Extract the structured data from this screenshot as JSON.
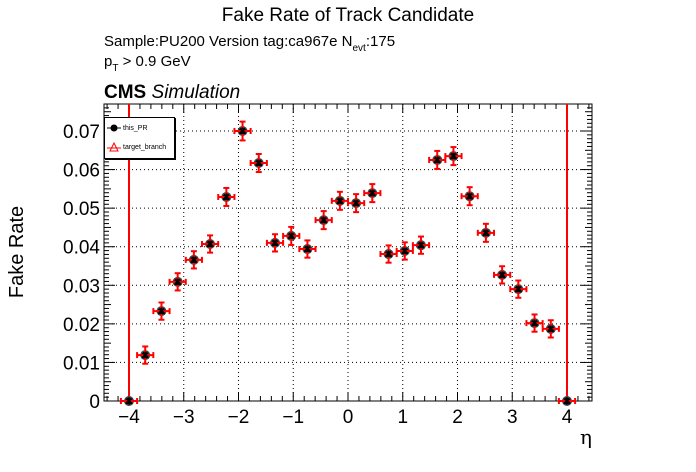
{
  "header": {
    "title": "Fake Rate of Track Candidate",
    "sample_line": "Sample:PU200   Version tag:ca967e  N",
    "nevt_sub": "evt",
    "nevt_value": ":175",
    "pt_prefix": "p",
    "pt_sub": "T",
    "pt_cut": " > 0.9 GeV",
    "cms_bold": "CMS",
    "cms_italic": "Simulation"
  },
  "legend": {
    "entries": [
      {
        "label": "this_PR",
        "marker": "black-filled-circle",
        "color": "#000000"
      },
      {
        "label": "target_branch",
        "marker": "red-open-triangle",
        "color": "#ff0000"
      }
    ]
  },
  "colors": {
    "series_this_pr": "#000000",
    "series_target": "#ff0000",
    "eta_boundary_lines": "#ff0000",
    "grid": "#000000"
  },
  "chart_data": {
    "type": "scatter",
    "title": "Fake Rate of Track Candidate",
    "subtitle": "Sample:PU200   Version tag:ca967e  N_evt:175; p_T > 0.9 GeV",
    "annotation": "CMS Simulation",
    "xlabel": "η",
    "ylabel": "Fake Rate",
    "xlim": [
      -4.45,
      4.45
    ],
    "ylim": [
      0,
      0.0775
    ],
    "xticks": [
      "−4",
      "−3",
      "−2",
      "−1",
      "0",
      "1",
      "2",
      "3",
      "4"
    ],
    "yticks": [
      "0",
      "0.01",
      "0.02",
      "0.03",
      "0.04",
      "0.05",
      "0.06",
      "0.07"
    ],
    "grid": true,
    "legend_position": "top-left",
    "vertical_lines": [
      -4,
      4
    ],
    "x": [
      -4.0,
      -3.704,
      -3.407,
      -3.111,
      -2.815,
      -2.519,
      -2.222,
      -1.926,
      -1.63,
      -1.333,
      -1.037,
      -0.741,
      -0.444,
      -0.148,
      0.148,
      0.444,
      0.741,
      1.037,
      1.333,
      1.63,
      1.926,
      2.222,
      2.519,
      2.815,
      3.111,
      3.407,
      3.704,
      4.0
    ],
    "series": [
      {
        "name": "this_PR",
        "values": [
          0.0,
          0.0119,
          0.0233,
          0.0309,
          0.0366,
          0.0407,
          0.0529,
          0.07,
          0.0617,
          0.041,
          0.0428,
          0.0394,
          0.0469,
          0.0519,
          0.0513,
          0.0539,
          0.0381,
          0.0389,
          0.0404,
          0.0625,
          0.0635,
          0.0531,
          0.0436,
          0.0327,
          0.029,
          0.0202,
          0.0187,
          0.0
        ]
      },
      {
        "name": "target_branch",
        "values": [
          0.0,
          0.0119,
          0.0233,
          0.0309,
          0.0366,
          0.0407,
          0.0529,
          0.07,
          0.0617,
          0.041,
          0.0428,
          0.0394,
          0.0469,
          0.0519,
          0.0513,
          0.0539,
          0.0381,
          0.0389,
          0.0404,
          0.0625,
          0.0635,
          0.0531,
          0.0436,
          0.0327,
          0.029,
          0.0202,
          0.0187,
          0.0
        ]
      }
    ],
    "yerr": [
      0.0,
      0.0012,
      0.0012,
      0.0012,
      0.0012,
      0.0012,
      0.0013,
      0.0014,
      0.0013,
      0.0012,
      0.0013,
      0.0012,
      0.0013,
      0.0013,
      0.0013,
      0.0013,
      0.0012,
      0.0012,
      0.0012,
      0.0013,
      0.0013,
      0.0013,
      0.0013,
      0.0012,
      0.0012,
      0.0012,
      0.0012,
      0.0
    ],
    "xerr": 0.148
  }
}
